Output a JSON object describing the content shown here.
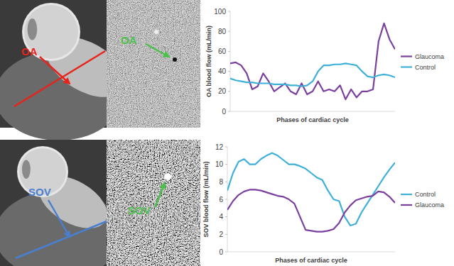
{
  "image_labels": {
    "top": [
      "OA",
      "OA"
    ],
    "bottom": [
      "SOV",
      "SOV"
    ]
  },
  "chart_data": [
    {
      "type": "line",
      "xlabel": "Phases of cardiac cycle",
      "ylabel": "OA blood flow (mL/min)",
      "x": [
        0,
        1,
        2,
        3,
        4,
        5,
        6,
        7,
        8,
        9,
        10,
        11,
        12,
        13,
        14,
        15,
        16,
        17,
        18,
        19,
        20,
        21,
        22,
        23,
        24,
        25,
        26,
        27,
        28,
        29,
        30
      ],
      "xlim": [
        0,
        30
      ],
      "xticks": [],
      "ylim": [
        0,
        100
      ],
      "yticks": [
        0,
        20,
        40,
        60,
        80,
        100
      ],
      "tick_labels": "y",
      "grid": false,
      "legend": "right",
      "series": [
        {
          "name": "Glaucoma",
          "color": "#7b3f9e",
          "values": [
            48,
            49,
            46,
            38,
            22,
            25,
            38,
            30,
            20,
            24,
            28,
            20,
            17,
            28,
            17,
            20,
            30,
            20,
            22,
            20,
            26,
            12,
            22,
            14,
            20,
            20,
            22,
            70,
            88,
            72,
            62
          ]
        },
        {
          "name": "Control",
          "color": "#3fb0d8",
          "values": [
            33,
            31,
            30,
            29,
            29,
            28,
            28,
            28,
            27,
            27,
            27,
            26,
            26,
            25,
            26,
            30,
            40,
            46,
            46,
            47,
            47,
            48,
            47,
            46,
            40,
            35,
            34,
            36,
            37,
            36,
            34
          ]
        }
      ]
    },
    {
      "type": "line",
      "xlabel": "Phases of cardiac cycle",
      "ylabel": "SOV blood flow (mL/min)",
      "x": [
        0,
        1,
        2,
        3,
        4,
        5,
        6,
        7,
        8,
        9,
        10,
        11,
        12,
        13,
        14,
        15,
        16,
        17,
        18,
        19,
        20,
        21,
        22,
        23,
        24,
        25,
        26,
        27,
        28,
        29,
        30
      ],
      "xlim": [
        0,
        30
      ],
      "xticks": [],
      "ylim": [
        0,
        12
      ],
      "yticks": [
        0,
        2,
        4,
        6,
        8,
        10,
        12
      ],
      "tick_labels": "y",
      "grid": false,
      "legend": "right",
      "series": [
        {
          "name": "Control",
          "color": "#3fb0d8",
          "values": [
            7,
            9,
            10.3,
            10.6,
            10,
            10,
            10.6,
            11,
            11.3,
            11,
            10.5,
            10,
            10,
            9.8,
            9.5,
            9,
            8.5,
            8.2,
            7,
            6,
            5.8,
            4,
            3,
            3.2,
            4.5,
            5.5,
            6.5,
            7.5,
            8.5,
            9.4,
            10.2
          ]
        },
        {
          "name": "Glaucoma",
          "color": "#7b3f9e",
          "values": [
            4.8,
            5.8,
            6.5,
            6.9,
            7.1,
            7.1,
            7,
            6.8,
            6.6,
            6.4,
            6.3,
            6,
            5.5,
            4,
            2.5,
            2.4,
            2.3,
            2.3,
            2.4,
            2.6,
            3.3,
            4.5,
            5.3,
            5.9,
            6.1,
            6.3,
            6.4,
            6.9,
            6.8,
            6.3,
            5.6
          ]
        }
      ]
    }
  ]
}
